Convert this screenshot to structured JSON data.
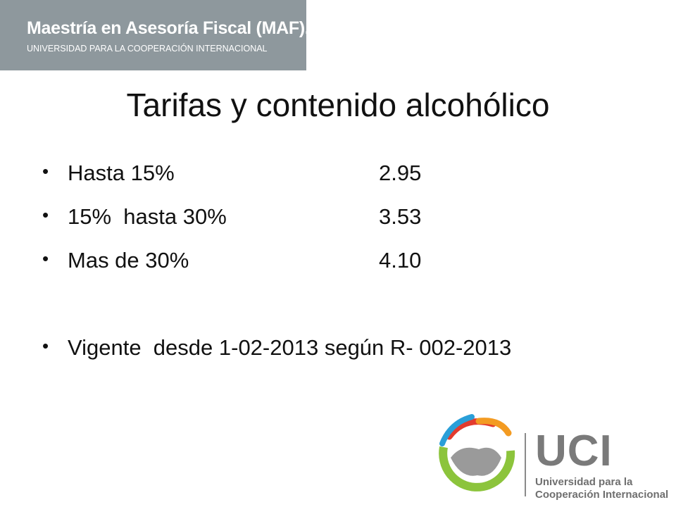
{
  "header": {
    "title": "Maestría en Asesoría Fiscal (MAF).",
    "subtitle": "UNIVERSIDAD PARA LA COOPERACIÓN INTERNACIONAL"
  },
  "title": "Tarifas y contenido alcohólico",
  "rates": [
    {
      "label": "Hasta 15%",
      "value": "2.95"
    },
    {
      "label": "15%  hasta 30%",
      "value": "3.53"
    },
    {
      "label": "Mas de 30%",
      "value": "4.10"
    }
  ],
  "note": "Vigente  desde 1-02-2013 según R- 002-2013",
  "logo": {
    "name": "UCI",
    "line1": "Universidad para la",
    "line2": "Cooperación Internacional"
  }
}
